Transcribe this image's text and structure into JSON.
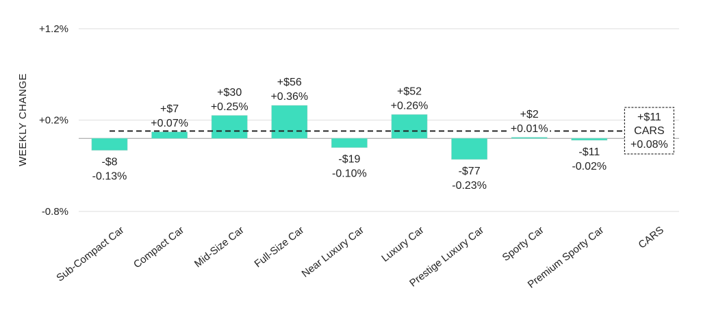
{
  "chart_data": {
    "type": "bar",
    "ylabel": "WEEKLY CHANGE",
    "ylim": [
      -0.8,
      1.2
    ],
    "yticks": [
      1.2,
      0.2,
      -0.8
    ],
    "ytick_labels": [
      "+1.2%",
      "+0.2%",
      "-0.8%"
    ],
    "grid": true,
    "bar_color": "#3dddbd",
    "categories": [
      "Sub-Compact Car",
      "Compact Car",
      "Mid-Size Car",
      "Full-Size Car",
      "Near Luxury Car",
      "Luxury Car",
      "Prestige Luxury Car",
      "Sporty Car",
      "Premium Sporty Car",
      "CARS"
    ],
    "values": [
      -0.13,
      0.07,
      0.25,
      0.36,
      -0.1,
      0.26,
      -0.23,
      0.01,
      -0.02,
      null
    ],
    "dollar_labels": [
      "-$8",
      "+$7",
      "+$30",
      "+$56",
      "-$19",
      "+$52",
      "-$77",
      "+$2",
      "-$11",
      "+$11"
    ],
    "pct_labels": [
      "-0.13%",
      "+0.07%",
      "+0.25%",
      "+0.36%",
      "-0.10%",
      "+0.26%",
      "-0.23%",
      "+0.01%",
      "-0.02%",
      "+0.08%"
    ],
    "reference_line": {
      "value": 0.08,
      "style": "dashed"
    },
    "total_box": {
      "dollar": "+$11",
      "name": "CARS",
      "pct": "+0.08%"
    }
  }
}
